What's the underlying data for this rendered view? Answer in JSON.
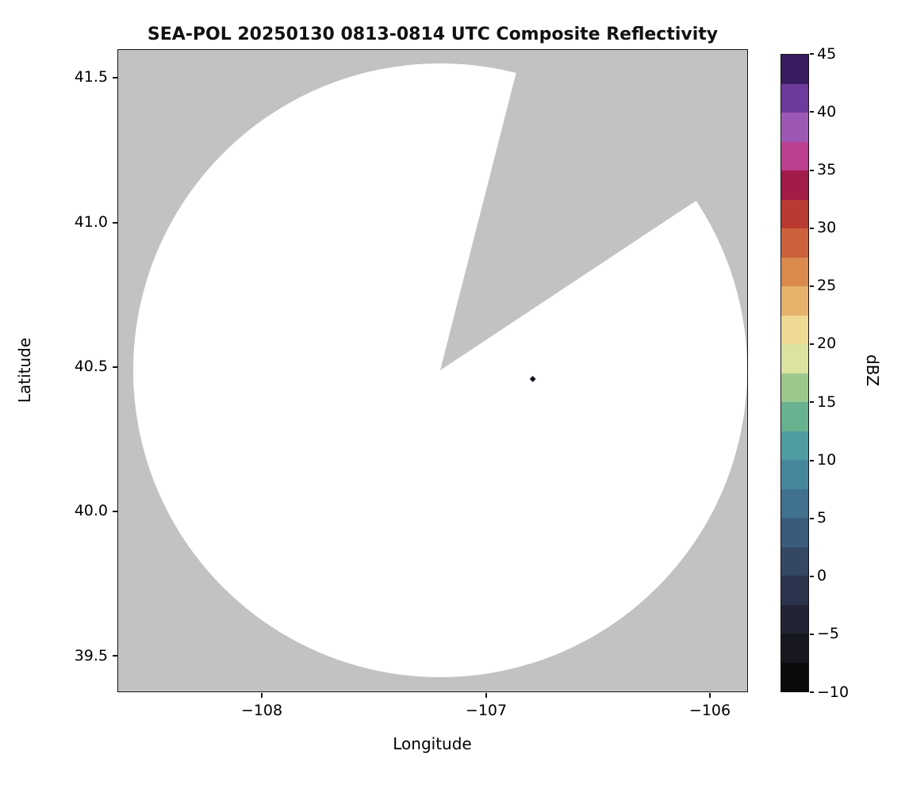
{
  "chart_data": {
    "type": "heatmap",
    "title": "SEA-POL 20250130 0813-0814 UTC Composite Reflectivity",
    "xlabel": "Longitude",
    "ylabel": "Latitude",
    "xlim": [
      -108.64,
      -105.78
    ],
    "ylim": [
      39.37,
      41.6
    ],
    "grid": false,
    "x_tick_labels": [
      "−108",
      "−107",
      "−106"
    ],
    "x_tick_values": [
      -108,
      -107,
      -106
    ],
    "y_tick_labels": [
      "41.5",
      "41.0",
      "40.5",
      "40.0",
      "39.5"
    ],
    "y_tick_values": [
      41.5,
      41.0,
      40.5,
      40.0,
      39.5
    ],
    "colorbar": {
      "label": "dBZ",
      "min": -10,
      "max": 45,
      "ticks": [
        "45",
        "40",
        "35",
        "30",
        "25",
        "20",
        "15",
        "10",
        "5",
        "0",
        "−5",
        "−10"
      ],
      "tick_values": [
        45,
        40,
        35,
        30,
        25,
        20,
        15,
        10,
        5,
        0,
        -5,
        -10
      ],
      "bin_width_dbz": 2.5,
      "colors_bottom_to_top": [
        "#0a0a0c",
        "#17171f",
        "#222433",
        "#2c334d",
        "#344765",
        "#3a5c7c",
        "#40718f",
        "#46879d",
        "#4e9da0",
        "#68b290",
        "#9cc88c",
        "#dce2a0",
        "#eeda93",
        "#e7b26c",
        "#db8a4e",
        "#cc613b",
        "#b93a30",
        "#a31c48",
        "#bc3f90",
        "#9d58b5",
        "#6e3a9e",
        "#371d5f"
      ]
    },
    "radar": {
      "description": "White disk = radar coverage area with no echoes; gray = no data / outside scan",
      "center_lon": -107.2,
      "center_lat": 40.48,
      "radius_deg_lat": 1.07,
      "blocked_sector_azimuth_deg_from_north": [
        14,
        57
      ],
      "background_color": "#c2c2c2",
      "coverage_color": "#ffffff"
    },
    "echoes": [
      {
        "lon": -106.79,
        "lat": 40.46,
        "color": "#1b1322"
      }
    ]
  }
}
